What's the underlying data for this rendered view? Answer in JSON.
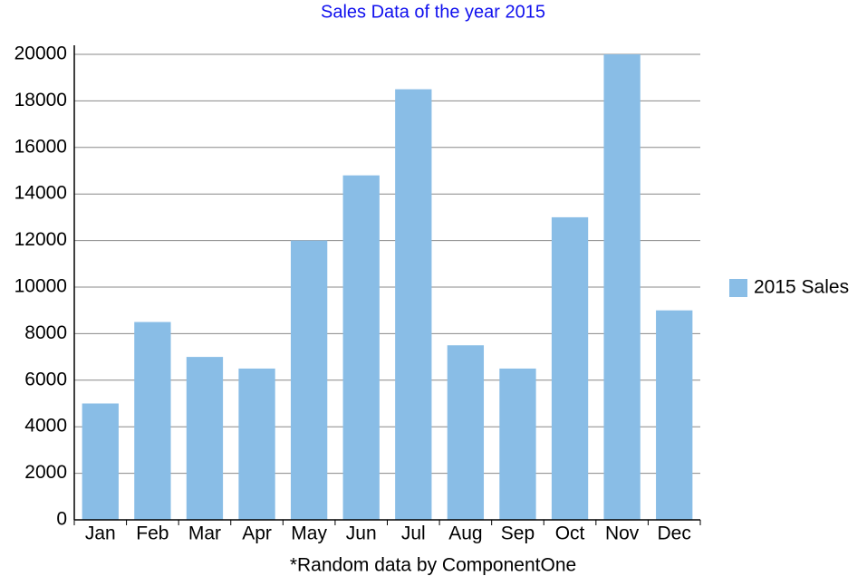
{
  "chart_data": {
    "type": "bar",
    "title": "Sales Data of the year 2015",
    "categories": [
      "Jan",
      "Feb",
      "Mar",
      "Apr",
      "May",
      "Jun",
      "Jul",
      "Aug",
      "Sep",
      "Oct",
      "Nov",
      "Dec"
    ],
    "series": [
      {
        "name": "2015 Sales",
        "color": "#89bde6",
        "values": [
          5000,
          8500,
          7000,
          6500,
          12000,
          14800,
          18500,
          7500,
          6500,
          13000,
          20000,
          9000
        ]
      }
    ],
    "ylim": [
      0,
      20000
    ],
    "yticks": [
      0,
      2000,
      4000,
      6000,
      8000,
      10000,
      12000,
      14000,
      16000,
      18000,
      20000
    ],
    "grid": true,
    "legend": "right",
    "annotation": "*Random data by ComponentOne"
  }
}
